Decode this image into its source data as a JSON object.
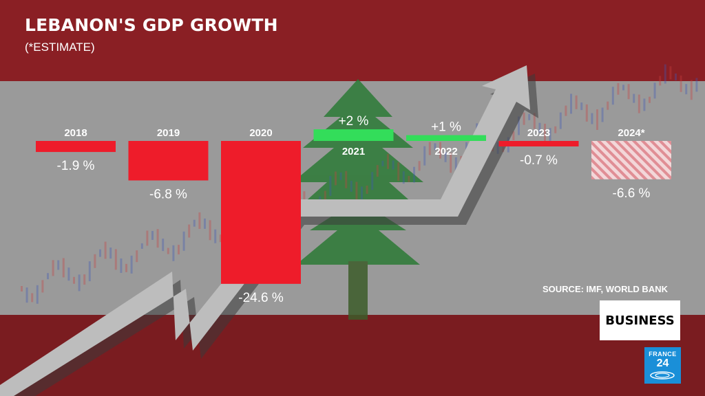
{
  "header": {
    "title": "LEBANON'S GDP GROWTH",
    "subtitle": "(*ESTIMATE)"
  },
  "source": "SOURCE: IMF, WORLD BANK",
  "badge": {
    "label": "BUSINESS"
  },
  "logo": {
    "top": "FRANCE",
    "number": "24"
  },
  "colors": {
    "negative": "#ee1c2a",
    "positive": "#33dd5a",
    "estimate_stripe": "#e79aa0",
    "band_gray": "#9a9a9a",
    "band_red": "#8a1f24",
    "cedar": "#2c7a36"
  },
  "icons": [
    "cedar-tree-icon",
    "growth-arrow-icon",
    "france24-logo-icon"
  ],
  "chart_data": {
    "type": "bar",
    "title": "LEBANON'S GDP GROWTH",
    "subtitle": "(*ESTIMATE)",
    "xlabel": "",
    "ylabel": "",
    "categories": [
      "2018",
      "2019",
      "2020",
      "2021",
      "2022",
      "2023",
      "2024*"
    ],
    "values": [
      -1.9,
      -6.8,
      -24.6,
      2,
      1,
      -0.7,
      -6.6
    ],
    "value_labels": [
      "-1.9 %",
      "-6.8 %",
      "-24.6 %",
      "+2 %",
      "+1 %",
      "-0.7 %",
      "-6.6 %"
    ],
    "estimate": [
      false,
      false,
      false,
      false,
      false,
      false,
      true
    ],
    "grid": false,
    "legend": "none"
  }
}
